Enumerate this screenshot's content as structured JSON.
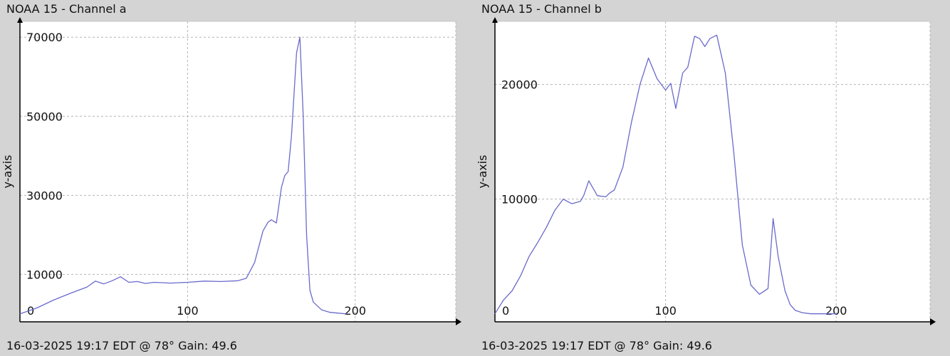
{
  "chart_data": [
    {
      "type": "line",
      "title": "NOAA 15 - Channel a",
      "footer": "16-03-2025 19:17 EDT @ 78° Gain: 49.6",
      "ylabel": "y-axis",
      "xlabel": "",
      "xlim": [
        0,
        260
      ],
      "ylim": [
        -2000,
        74000
      ],
      "xticks": [
        0,
        100,
        200
      ],
      "yticks": [
        10000,
        30000,
        50000,
        70000
      ],
      "tick_labels_x": [
        "0",
        "100",
        "200"
      ],
      "tick_labels_y": [
        "10000",
        "30000",
        "50000",
        "70000"
      ],
      "grid": true,
      "line_color": "#6a6acc",
      "series": [
        {
          "x": [
            0,
            10,
            20,
            30,
            40,
            45,
            50,
            55,
            60,
            65,
            70,
            75,
            80,
            90,
            100,
            110,
            120,
            130,
            135,
            140,
            145,
            148,
            150,
            153,
            156,
            158,
            160,
            162,
            165,
            167,
            169,
            171,
            173,
            175,
            180,
            185,
            190,
            195
          ],
          "y": [
            0,
            1500,
            3500,
            5200,
            6800,
            8300,
            7600,
            8400,
            9400,
            8000,
            8200,
            7700,
            8000,
            7800,
            8000,
            8300,
            8200,
            8400,
            9000,
            13000,
            21000,
            23200,
            23800,
            23000,
            32000,
            35000,
            36000,
            45000,
            66000,
            70000,
            50000,
            20000,
            6000,
            3000,
            1000,
            400,
            200,
            0
          ]
        }
      ]
    },
    {
      "type": "line",
      "title": "NOAA 15 - Channel b",
      "footer": "16-03-2025 19:17 EDT @ 78° Gain: 49.6",
      "ylabel": "y-axis",
      "xlabel": "",
      "xlim": [
        0,
        255
      ],
      "ylim": [
        -700,
        25500
      ],
      "xticks": [
        0,
        100,
        200
      ],
      "yticks": [
        10000,
        20000
      ],
      "tick_labels_x": [
        "0",
        "100",
        "200"
      ],
      "tick_labels_y": [
        "10000",
        "20000"
      ],
      "grid": true,
      "line_color": "#6a6acc",
      "series": [
        {
          "x": [
            0,
            5,
            10,
            15,
            20,
            25,
            30,
            35,
            40,
            45,
            50,
            52,
            55,
            60,
            65,
            67,
            70,
            75,
            80,
            85,
            90,
            95,
            100,
            103,
            106,
            110,
            113,
            117,
            120,
            123,
            126,
            130,
            135,
            140,
            145,
            150,
            155,
            160,
            163,
            166,
            170,
            173,
            176,
            180,
            185,
            190,
            195,
            200
          ],
          "y": [
            0,
            1200,
            2000,
            3300,
            5000,
            6200,
            7500,
            9000,
            10000,
            9600,
            9800,
            10300,
            11600,
            10300,
            10200,
            10500,
            10800,
            12800,
            16700,
            20000,
            22300,
            20500,
            19500,
            20100,
            17900,
            21000,
            21500,
            24200,
            24000,
            23300,
            24000,
            24300,
            21000,
            14000,
            6000,
            2500,
            1700,
            2200,
            8300,
            5000,
            2000,
            800,
            300,
            100,
            0,
            0,
            0,
            0
          ]
        }
      ]
    }
  ]
}
